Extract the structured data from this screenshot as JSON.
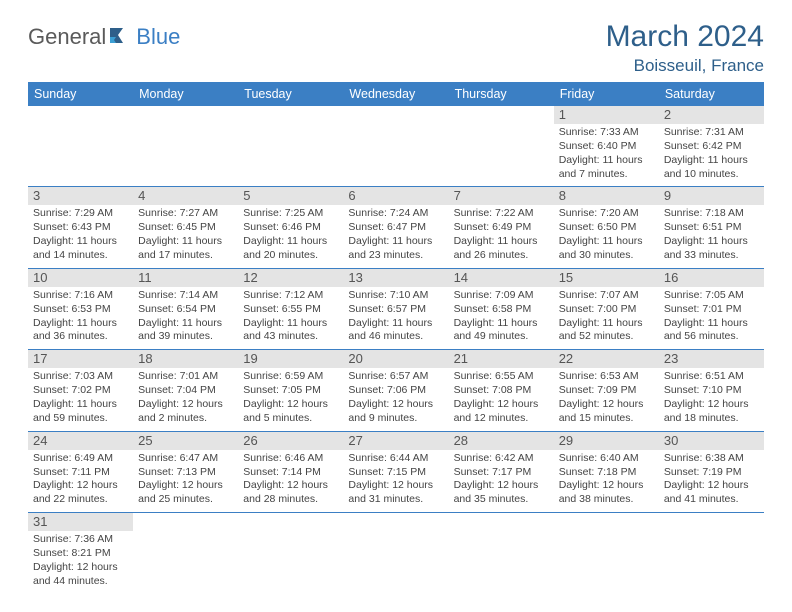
{
  "logo": {
    "part1": "General",
    "part2": "Blue"
  },
  "title": "March 2024",
  "location": "Boisseuil, France",
  "colors": {
    "header_bg": "#3b7fc4",
    "header_text": "#ffffff",
    "title_color": "#2e5f8a",
    "border": "#3b7fc4",
    "numbar_bg": "#e4e4e4",
    "body_text": "#444444"
  },
  "weekdays": [
    "Sunday",
    "Monday",
    "Tuesday",
    "Wednesday",
    "Thursday",
    "Friday",
    "Saturday"
  ],
  "weeks": [
    [
      null,
      null,
      null,
      null,
      null,
      {
        "d": "1",
        "sr": "Sunrise: 7:33 AM",
        "ss": "Sunset: 6:40 PM",
        "dl1": "Daylight: 11 hours",
        "dl2": "and 7 minutes."
      },
      {
        "d": "2",
        "sr": "Sunrise: 7:31 AM",
        "ss": "Sunset: 6:42 PM",
        "dl1": "Daylight: 11 hours",
        "dl2": "and 10 minutes."
      }
    ],
    [
      {
        "d": "3",
        "sr": "Sunrise: 7:29 AM",
        "ss": "Sunset: 6:43 PM",
        "dl1": "Daylight: 11 hours",
        "dl2": "and 14 minutes."
      },
      {
        "d": "4",
        "sr": "Sunrise: 7:27 AM",
        "ss": "Sunset: 6:45 PM",
        "dl1": "Daylight: 11 hours",
        "dl2": "and 17 minutes."
      },
      {
        "d": "5",
        "sr": "Sunrise: 7:25 AM",
        "ss": "Sunset: 6:46 PM",
        "dl1": "Daylight: 11 hours",
        "dl2": "and 20 minutes."
      },
      {
        "d": "6",
        "sr": "Sunrise: 7:24 AM",
        "ss": "Sunset: 6:47 PM",
        "dl1": "Daylight: 11 hours",
        "dl2": "and 23 minutes."
      },
      {
        "d": "7",
        "sr": "Sunrise: 7:22 AM",
        "ss": "Sunset: 6:49 PM",
        "dl1": "Daylight: 11 hours",
        "dl2": "and 26 minutes."
      },
      {
        "d": "8",
        "sr": "Sunrise: 7:20 AM",
        "ss": "Sunset: 6:50 PM",
        "dl1": "Daylight: 11 hours",
        "dl2": "and 30 minutes."
      },
      {
        "d": "9",
        "sr": "Sunrise: 7:18 AM",
        "ss": "Sunset: 6:51 PM",
        "dl1": "Daylight: 11 hours",
        "dl2": "and 33 minutes."
      }
    ],
    [
      {
        "d": "10",
        "sr": "Sunrise: 7:16 AM",
        "ss": "Sunset: 6:53 PM",
        "dl1": "Daylight: 11 hours",
        "dl2": "and 36 minutes."
      },
      {
        "d": "11",
        "sr": "Sunrise: 7:14 AM",
        "ss": "Sunset: 6:54 PM",
        "dl1": "Daylight: 11 hours",
        "dl2": "and 39 minutes."
      },
      {
        "d": "12",
        "sr": "Sunrise: 7:12 AM",
        "ss": "Sunset: 6:55 PM",
        "dl1": "Daylight: 11 hours",
        "dl2": "and 43 minutes."
      },
      {
        "d": "13",
        "sr": "Sunrise: 7:10 AM",
        "ss": "Sunset: 6:57 PM",
        "dl1": "Daylight: 11 hours",
        "dl2": "and 46 minutes."
      },
      {
        "d": "14",
        "sr": "Sunrise: 7:09 AM",
        "ss": "Sunset: 6:58 PM",
        "dl1": "Daylight: 11 hours",
        "dl2": "and 49 minutes."
      },
      {
        "d": "15",
        "sr": "Sunrise: 7:07 AM",
        "ss": "Sunset: 7:00 PM",
        "dl1": "Daylight: 11 hours",
        "dl2": "and 52 minutes."
      },
      {
        "d": "16",
        "sr": "Sunrise: 7:05 AM",
        "ss": "Sunset: 7:01 PM",
        "dl1": "Daylight: 11 hours",
        "dl2": "and 56 minutes."
      }
    ],
    [
      {
        "d": "17",
        "sr": "Sunrise: 7:03 AM",
        "ss": "Sunset: 7:02 PM",
        "dl1": "Daylight: 11 hours",
        "dl2": "and 59 minutes."
      },
      {
        "d": "18",
        "sr": "Sunrise: 7:01 AM",
        "ss": "Sunset: 7:04 PM",
        "dl1": "Daylight: 12 hours",
        "dl2": "and 2 minutes."
      },
      {
        "d": "19",
        "sr": "Sunrise: 6:59 AM",
        "ss": "Sunset: 7:05 PM",
        "dl1": "Daylight: 12 hours",
        "dl2": "and 5 minutes."
      },
      {
        "d": "20",
        "sr": "Sunrise: 6:57 AM",
        "ss": "Sunset: 7:06 PM",
        "dl1": "Daylight: 12 hours",
        "dl2": "and 9 minutes."
      },
      {
        "d": "21",
        "sr": "Sunrise: 6:55 AM",
        "ss": "Sunset: 7:08 PM",
        "dl1": "Daylight: 12 hours",
        "dl2": "and 12 minutes."
      },
      {
        "d": "22",
        "sr": "Sunrise: 6:53 AM",
        "ss": "Sunset: 7:09 PM",
        "dl1": "Daylight: 12 hours",
        "dl2": "and 15 minutes."
      },
      {
        "d": "23",
        "sr": "Sunrise: 6:51 AM",
        "ss": "Sunset: 7:10 PM",
        "dl1": "Daylight: 12 hours",
        "dl2": "and 18 minutes."
      }
    ],
    [
      {
        "d": "24",
        "sr": "Sunrise: 6:49 AM",
        "ss": "Sunset: 7:11 PM",
        "dl1": "Daylight: 12 hours",
        "dl2": "and 22 minutes."
      },
      {
        "d": "25",
        "sr": "Sunrise: 6:47 AM",
        "ss": "Sunset: 7:13 PM",
        "dl1": "Daylight: 12 hours",
        "dl2": "and 25 minutes."
      },
      {
        "d": "26",
        "sr": "Sunrise: 6:46 AM",
        "ss": "Sunset: 7:14 PM",
        "dl1": "Daylight: 12 hours",
        "dl2": "and 28 minutes."
      },
      {
        "d": "27",
        "sr": "Sunrise: 6:44 AM",
        "ss": "Sunset: 7:15 PM",
        "dl1": "Daylight: 12 hours",
        "dl2": "and 31 minutes."
      },
      {
        "d": "28",
        "sr": "Sunrise: 6:42 AM",
        "ss": "Sunset: 7:17 PM",
        "dl1": "Daylight: 12 hours",
        "dl2": "and 35 minutes."
      },
      {
        "d": "29",
        "sr": "Sunrise: 6:40 AM",
        "ss": "Sunset: 7:18 PM",
        "dl1": "Daylight: 12 hours",
        "dl2": "and 38 minutes."
      },
      {
        "d": "30",
        "sr": "Sunrise: 6:38 AM",
        "ss": "Sunset: 7:19 PM",
        "dl1": "Daylight: 12 hours",
        "dl2": "and 41 minutes."
      }
    ],
    [
      {
        "d": "31",
        "sr": "Sunrise: 7:36 AM",
        "ss": "Sunset: 8:21 PM",
        "dl1": "Daylight: 12 hours",
        "dl2": "and 44 minutes."
      },
      null,
      null,
      null,
      null,
      null,
      null
    ]
  ]
}
